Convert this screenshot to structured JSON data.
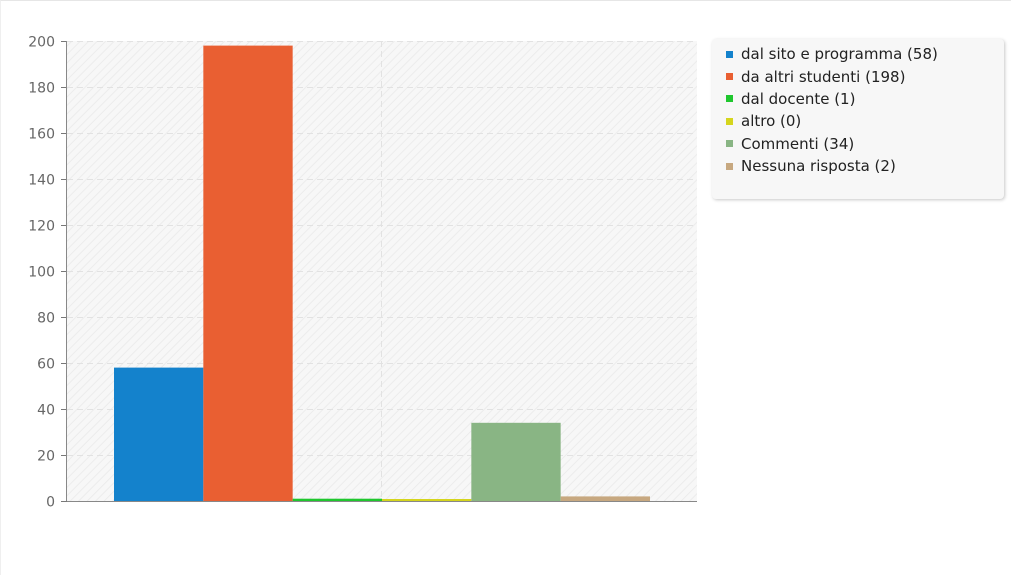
{
  "chart_data": {
    "type": "bar",
    "categories": [
      ""
    ],
    "series": [
      {
        "name": "dal sito e programma (58)",
        "values": [
          58
        ],
        "color": "#1482cc"
      },
      {
        "name": "da altri studenti (198)",
        "values": [
          198
        ],
        "color": "#e95f32"
      },
      {
        "name": "dal docente (1)",
        "values": [
          1
        ],
        "color": "#1fc72e"
      },
      {
        "name": "altro (0)",
        "values": [
          0
        ],
        "color": "#d5d51d"
      },
      {
        "name": "Commenti (34)",
        "values": [
          34
        ],
        "color": "#89b584"
      },
      {
        "name": "Nessuna risposta (2)",
        "values": [
          2
        ],
        "color": "#c7a880"
      }
    ],
    "ylim": [
      0,
      200
    ],
    "yticks": [
      "0",
      "20",
      "40",
      "60",
      "80",
      "100",
      "120",
      "140",
      "160",
      "180",
      "200"
    ],
    "grid": true,
    "legend": "right"
  }
}
